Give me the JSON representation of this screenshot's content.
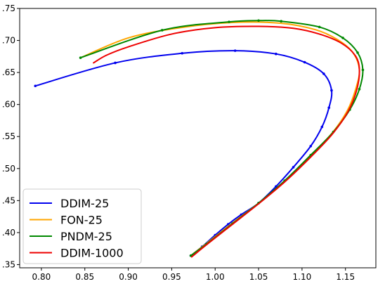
{
  "chart_data": {
    "type": "line",
    "title": "",
    "xlabel": "",
    "ylabel": "",
    "xlim": [
      0.775,
      1.185
    ],
    "ylim": [
      0.345,
      0.75
    ],
    "grid": false,
    "legend_position": "lower-left",
    "x_ticks": [
      {
        "value": 0.8,
        "label": "0.80"
      },
      {
        "value": 0.85,
        "label": "0.85"
      },
      {
        "value": 0.9,
        "label": "0.90"
      },
      {
        "value": 0.95,
        "label": "0.95"
      },
      {
        "value": 1.0,
        "label": "1.00"
      },
      {
        "value": 1.05,
        "label": "1.05"
      },
      {
        "value": 1.1,
        "label": "1.10"
      },
      {
        "value": 1.15,
        "label": "1.15"
      }
    ],
    "y_ticks": [
      {
        "value": 0.35,
        "label": ".35"
      },
      {
        "value": 0.4,
        "label": ".40"
      },
      {
        "value": 0.45,
        "label": ".45"
      },
      {
        "value": 0.5,
        "label": ".50"
      },
      {
        "value": 0.55,
        "label": ".55"
      },
      {
        "value": 0.6,
        "label": ".60"
      },
      {
        "value": 0.65,
        "label": ".65"
      },
      {
        "value": 0.7,
        "label": ".70"
      },
      {
        "value": 0.75,
        "label": ".75"
      }
    ],
    "series": [
      {
        "name": "DDIM-25",
        "color": "#0000ee",
        "markers": true,
        "points": [
          [
            0.972,
            0.364
          ],
          [
            0.985,
            0.378
          ],
          [
            1.0,
            0.396
          ],
          [
            1.015,
            0.413
          ],
          [
            1.03,
            0.428
          ],
          [
            1.05,
            0.446
          ],
          [
            1.07,
            0.472
          ],
          [
            1.09,
            0.502
          ],
          [
            1.11,
            0.535
          ],
          [
            1.123,
            0.565
          ],
          [
            1.131,
            0.595
          ],
          [
            1.134,
            0.622
          ],
          [
            1.125,
            0.648
          ],
          [
            1.103,
            0.666
          ],
          [
            1.07,
            0.679
          ],
          [
            1.023,
            0.684
          ],
          [
            0.962,
            0.68
          ],
          [
            0.885,
            0.665
          ],
          [
            0.793,
            0.629
          ]
        ]
      },
      {
        "name": "FON-25",
        "color": "#ffa500",
        "markers": false,
        "points": [
          [
            0.972,
            0.364
          ],
          [
            0.99,
            0.383
          ],
          [
            1.02,
            0.415
          ],
          [
            1.05,
            0.446
          ],
          [
            1.08,
            0.48
          ],
          [
            1.11,
            0.52
          ],
          [
            1.135,
            0.556
          ],
          [
            1.152,
            0.59
          ],
          [
            1.162,
            0.625
          ],
          [
            1.166,
            0.655
          ],
          [
            1.158,
            0.682
          ],
          [
            1.14,
            0.702
          ],
          [
            1.115,
            0.717
          ],
          [
            1.075,
            0.727
          ],
          [
            1.02,
            0.728
          ],
          [
            0.96,
            0.72
          ],
          [
            0.9,
            0.704
          ],
          [
            0.845,
            0.673
          ]
        ]
      },
      {
        "name": "PNDM-25",
        "color": "#008800",
        "markers": true,
        "points": [
          [
            0.972,
            0.364
          ],
          [
            0.99,
            0.382
          ],
          [
            1.02,
            0.414
          ],
          [
            1.05,
            0.446
          ],
          [
            1.08,
            0.481
          ],
          [
            1.11,
            0.521
          ],
          [
            1.136,
            0.557
          ],
          [
            1.155,
            0.592
          ],
          [
            1.166,
            0.624
          ],
          [
            1.17,
            0.654
          ],
          [
            1.164,
            0.681
          ],
          [
            1.147,
            0.704
          ],
          [
            1.12,
            0.721
          ],
          [
            1.076,
            0.73
          ],
          [
            1.05,
            0.731
          ],
          [
            1.016,
            0.729
          ],
          [
            0.939,
            0.716
          ],
          [
            0.845,
            0.673
          ]
        ]
      },
      {
        "name": "DDIM-1000",
        "color": "#ee0000",
        "markers": false,
        "points": [
          [
            0.973,
            0.362
          ],
          [
            0.99,
            0.381
          ],
          [
            1.02,
            0.413
          ],
          [
            1.05,
            0.445
          ],
          [
            1.08,
            0.479
          ],
          [
            1.11,
            0.518
          ],
          [
            1.135,
            0.554
          ],
          [
            1.153,
            0.589
          ],
          [
            1.163,
            0.623
          ],
          [
            1.166,
            0.655
          ],
          [
            1.161,
            0.677
          ],
          [
            1.145,
            0.696
          ],
          [
            1.12,
            0.71
          ],
          [
            1.09,
            0.719
          ],
          [
            1.05,
            0.722
          ],
          [
            1.0,
            0.72
          ],
          [
            0.95,
            0.71
          ],
          [
            0.9,
            0.69
          ],
          [
            0.875,
            0.677
          ],
          [
            0.86,
            0.665
          ]
        ]
      }
    ]
  }
}
